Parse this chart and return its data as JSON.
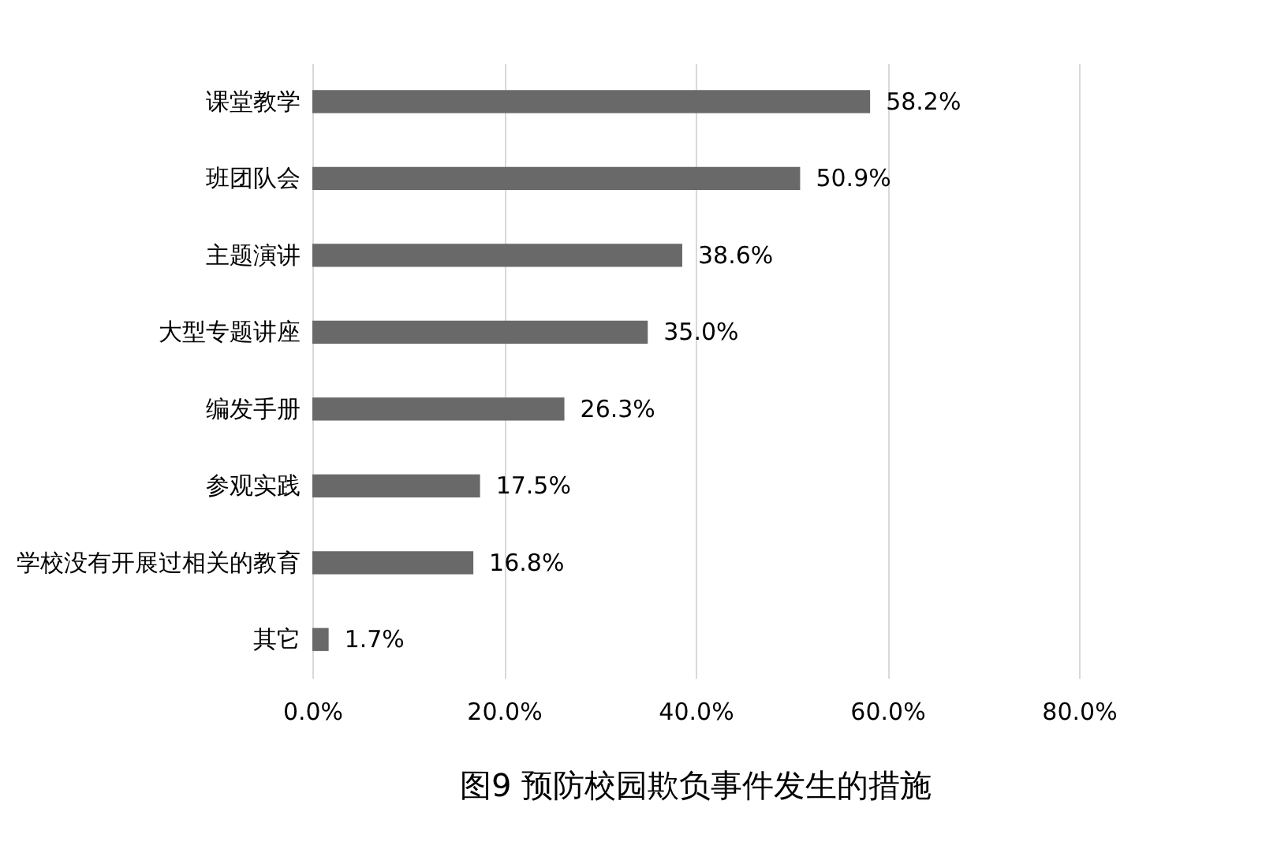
{
  "chart_data": {
    "type": "bar",
    "orientation": "horizontal",
    "title": "图9  预防校园欺负事件发生的措施",
    "categories": [
      "课堂教学",
      "班团队会",
      "主题演讲",
      "大型专题讲座",
      "编发手册",
      "参观实践",
      "学校没有开展过相关的教育",
      "其它"
    ],
    "values": [
      58.2,
      50.9,
      38.6,
      35.0,
      26.3,
      17.5,
      16.8,
      1.7
    ],
    "value_labels": [
      "58.2%",
      "50.9%",
      "38.6%",
      "35.0%",
      "26.3%",
      "17.5%",
      "16.8%",
      "1.7%"
    ],
    "color": "#696969",
    "xlim": [
      0,
      80
    ],
    "xticks": [
      {
        "value": 0,
        "label": "0.0%"
      },
      {
        "value": 20,
        "label": "20.0%"
      },
      {
        "value": 40,
        "label": "40.0%"
      },
      {
        "value": 60,
        "label": "60.0%"
      },
      {
        "value": 80,
        "label": "80.0%"
      }
    ],
    "grid": "x"
  }
}
